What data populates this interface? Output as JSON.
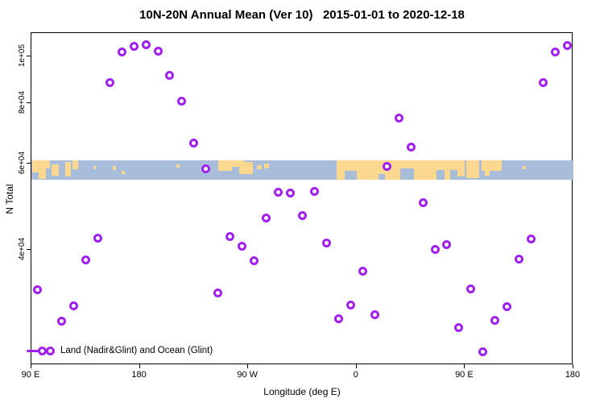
{
  "title": "10N-20N Annual Mean (Ver 10)   2015-01-01 to 2020-12-18",
  "colors": {
    "marker": "#A020F0",
    "ocean": "#a8bdd9",
    "land": "#fbd78f",
    "axis": "#000000",
    "background": "#ffffff"
  },
  "legend": {
    "label": "Land (Nadir&Glint) and Ocean (Glint)"
  },
  "chart_data": {
    "type": "scatter",
    "title": "10N-20N Annual Mean (Ver 10)   2015-01-01 to 2020-12-18",
    "xlabel": "Longitude (deg E)",
    "ylabel": "N Total",
    "x_scale": "linear",
    "y_scale": "log",
    "xlim": [
      90,
      540
    ],
    "ylim": [
      23000,
      111500
    ],
    "grid": false,
    "legend_position": "bottom-left-inside",
    "x_ticks": [
      {
        "lon": 90,
        "label": "90 E"
      },
      {
        "lon": 180,
        "label": "180"
      },
      {
        "lon": 270,
        "label": "90 W"
      },
      {
        "lon": 360,
        "label": "0"
      },
      {
        "lon": 450,
        "label": "90 E"
      },
      {
        "lon": 540,
        "label": "180"
      }
    ],
    "y_ticks": [
      {
        "value": 100000,
        "label": "1e+05"
      },
      {
        "value": 80000,
        "label": "8e+04"
      },
      {
        "value": 60000,
        "label": "6e+04"
      },
      {
        "value": 40000,
        "label": "4e+04"
      }
    ],
    "series": [
      {
        "name": "Land (Nadir&Glint) and Ocean (Glint)",
        "marker": "open-circle",
        "color": "#A020F0",
        "lon": [
          95,
          115,
          125,
          135,
          145,
          155,
          165,
          175,
          185,
          195,
          205,
          215,
          225,
          235,
          245,
          255,
          265,
          275,
          285,
          295,
          305,
          315,
          325,
          335,
          345,
          355,
          365,
          375,
          385,
          395,
          405,
          415,
          425,
          435,
          445,
          455,
          465,
          475,
          485,
          495,
          505,
          515,
          525,
          535
        ],
        "n_total": [
          33000,
          28500,
          30600,
          38000,
          42200,
          88200,
          102000,
          104700,
          105500,
          102300,
          91200,
          80700,
          66200,
          58600,
          32500,
          42500,
          40600,
          37900,
          46400,
          52500,
          52200,
          46900,
          52700,
          41200,
          28800,
          30700,
          36100,
          29400,
          59300,
          74500,
          65000,
          49900,
          40000,
          40900,
          27600,
          33200,
          24600,
          28600,
          30500,
          38200,
          42000,
          88200,
          102000,
          105000
        ]
      }
    ],
    "map_band": {
      "description": "World coastline strip for latitude band 10N-20N drawn across the plot",
      "value_top": 61000,
      "value_bottom": 55650,
      "ocean_color": "#a8bdd9",
      "land_color": "#fbd78f",
      "land_shapes": [
        {
          "x0": 0.001,
          "x1": 0.02,
          "y0": 0.0,
          "y1": 0.62
        },
        {
          "x0": 0.004,
          "x1": 0.034,
          "y0": 0.0,
          "y1": 0.42
        },
        {
          "x0": 0.013,
          "x1": 0.027,
          "y0": 0.42,
          "y1": 0.95
        },
        {
          "x0": 0.037,
          "x1": 0.051,
          "y0": 0.2,
          "y1": 0.8
        },
        {
          "x0": 0.062,
          "x1": 0.073,
          "y0": 0.08,
          "y1": 0.85
        },
        {
          "x0": 0.076,
          "x1": 0.086,
          "y0": 0.0,
          "y1": 0.45
        },
        {
          "x0": 0.114,
          "x1": 0.119,
          "y0": 0.3,
          "y1": 0.45
        },
        {
          "x0": 0.15,
          "x1": 0.156,
          "y0": 0.3,
          "y1": 0.5
        },
        {
          "x0": 0.166,
          "x1": 0.172,
          "y0": 0.55,
          "y1": 0.72
        },
        {
          "x0": 0.268,
          "x1": 0.274,
          "y0": 0.2,
          "y1": 0.38
        },
        {
          "x0": 0.345,
          "x1": 0.37,
          "y0": 0.0,
          "y1": 0.55
        },
        {
          "x0": 0.36,
          "x1": 0.393,
          "y0": 0.0,
          "y1": 0.35
        },
        {
          "x0": 0.383,
          "x1": 0.408,
          "y0": 0.1,
          "y1": 0.72
        },
        {
          "x0": 0.416,
          "x1": 0.425,
          "y0": 0.25,
          "y1": 0.48
        },
        {
          "x0": 0.43,
          "x1": 0.438,
          "y0": 0.18,
          "y1": 0.4
        },
        {
          "x0": 0.563,
          "x1": 0.776,
          "y0": 0.0,
          "y1": 1.0
        },
        {
          "x0": 0.776,
          "x1": 0.799,
          "y0": 0.0,
          "y1": 0.5
        },
        {
          "x0": 0.786,
          "x1": 0.799,
          "y0": 0.5,
          "y1": 0.85
        },
        {
          "x0": 0.803,
          "x1": 0.826,
          "y0": 0.0,
          "y1": 0.9
        },
        {
          "x0": 0.83,
          "x1": 0.868,
          "y0": 0.0,
          "y1": 0.55
        },
        {
          "x0": 0.836,
          "x1": 0.846,
          "y0": 0.55,
          "y1": 0.8
        },
        {
          "x0": 0.906,
          "x1": 0.913,
          "y0": 0.28,
          "y1": 0.45
        }
      ],
      "ocean_notches": [
        {
          "x0": 0.578,
          "x1": 0.601,
          "y0": 0.55,
          "y1": 1.0
        },
        {
          "x0": 0.64,
          "x1": 0.652,
          "y0": 0.7,
          "y1": 1.0
        },
        {
          "x0": 0.68,
          "x1": 0.706,
          "y0": 0.4,
          "y1": 1.0
        },
        {
          "x0": 0.748,
          "x1": 0.762,
          "y0": 0.5,
          "y1": 1.0
        },
        {
          "x0": 0.773,
          "x1": 0.786,
          "y0": 0.5,
          "y1": 1.0
        }
      ]
    }
  }
}
